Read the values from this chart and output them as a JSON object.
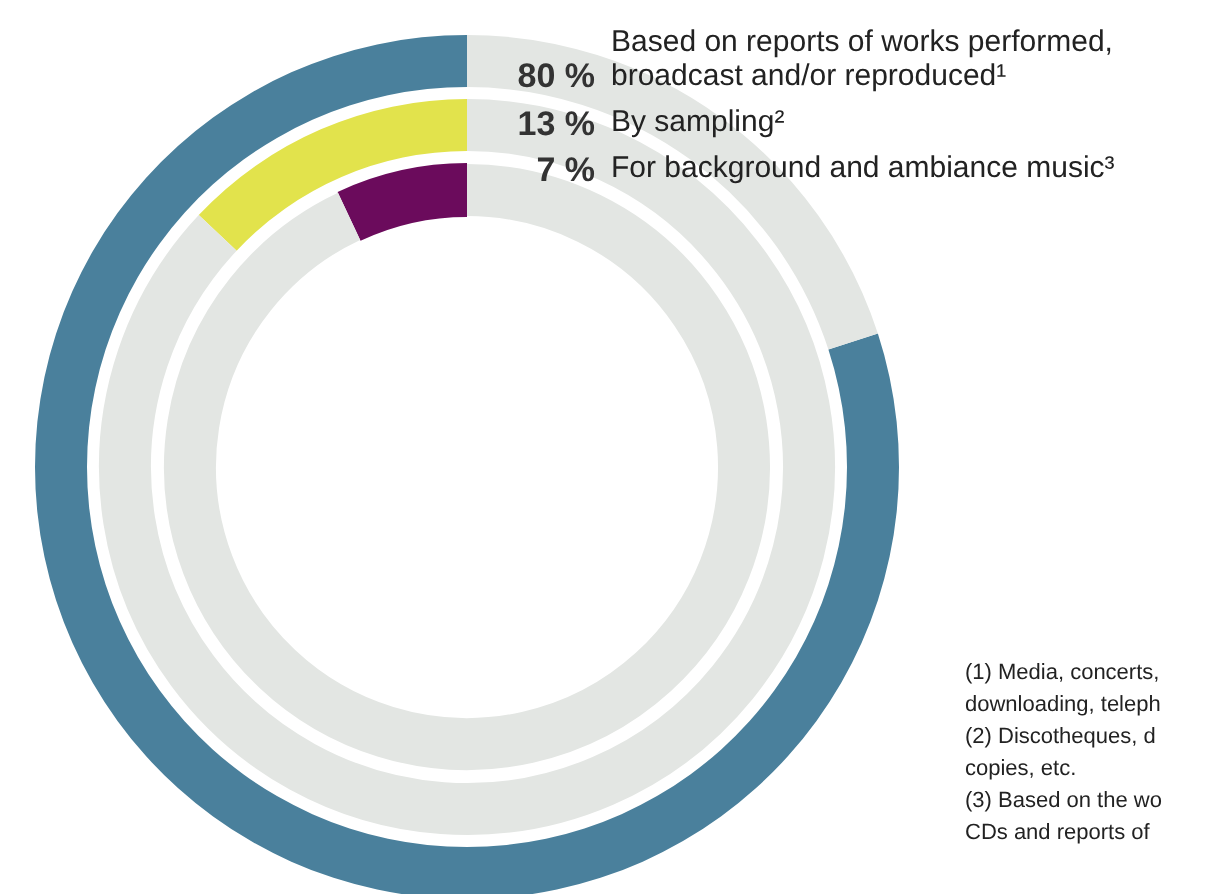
{
  "chart_data": {
    "type": "other",
    "categories": [
      "Based on reports of works performed, broadcast and/or reproduced¹",
      "By sampling²",
      "For background and ambiance music³"
    ],
    "values": [
      80,
      13,
      7
    ],
    "value_labels": [
      "80 %",
      "13 %",
      "7 %"
    ],
    "colors": [
      "#4a809c",
      "#e2e34c",
      "#6b0b5c"
    ],
    "annotations": [
      "(1) Media, concerts,",
      "downloading, teleph",
      "(2) Discotheques, d",
      "copies, etc.",
      "(3) Based on the wo",
      "CDs and reports of"
    ]
  }
}
